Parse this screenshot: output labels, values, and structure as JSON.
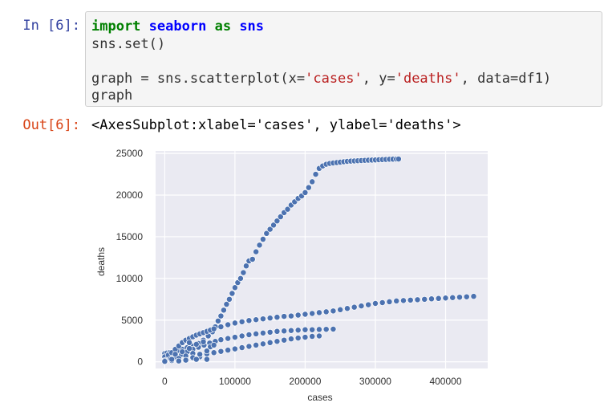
{
  "input_cell": {
    "prompt": "In [6]:",
    "lines": [
      [
        {
          "t": "import",
          "c": "kw"
        },
        {
          "t": " ",
          "c": ""
        },
        {
          "t": "seaborn",
          "c": "mod"
        },
        {
          "t": " ",
          "c": ""
        },
        {
          "t": "as",
          "c": "kw"
        },
        {
          "t": " ",
          "c": ""
        },
        {
          "t": "sns",
          "c": "mod"
        }
      ],
      [
        {
          "t": "sns.set()",
          "c": ""
        }
      ],
      [],
      [
        {
          "t": "graph = sns.scatterplot(x=",
          "c": ""
        },
        {
          "t": "'cases'",
          "c": "str"
        },
        {
          "t": ", y=",
          "c": ""
        },
        {
          "t": "'deaths'",
          "c": "str"
        },
        {
          "t": ", data=df1)",
          "c": ""
        }
      ],
      [
        {
          "t": "graph",
          "c": ""
        }
      ]
    ]
  },
  "output_cell": {
    "prompt": "Out[6]:",
    "text": "<AxesSubplot:xlabel='cases', ylabel='deaths'>"
  },
  "chart_data": {
    "type": "scatter",
    "xlabel": "cases",
    "ylabel": "deaths",
    "xlim": [
      -13000,
      460000
    ],
    "ylim": [
      -800,
      25300
    ],
    "xticks": [
      0,
      100000,
      200000,
      300000,
      400000
    ],
    "xtick_labels": [
      "0",
      "100000",
      "200000",
      "300000",
      "400000"
    ],
    "yticks": [
      0,
      5000,
      10000,
      15000,
      20000,
      25000
    ],
    "ytick_labels": [
      "0",
      "5000",
      "10000",
      "15000",
      "20000",
      "25000"
    ],
    "grid": true,
    "colors": {
      "background": "#eaeaf2",
      "grid": "#ffffff",
      "marker": "#4c72b0",
      "marker_edge": "#ffffff"
    },
    "series": [
      {
        "x": [
          0,
          3000,
          7000,
          12000,
          18000,
          25000,
          32000,
          40000,
          48000,
          55000,
          62000,
          68000,
          72000,
          76000,
          80000,
          84000,
          88000,
          92000,
          96000,
          100000,
          104000,
          108000,
          112000,
          116000,
          120000,
          125000,
          130000,
          135000,
          140000,
          145000,
          150000,
          155000,
          160000,
          165000,
          170000,
          175000,
          180000,
          185000,
          190000,
          195000,
          200000,
          205000,
          210000,
          215000,
          220000,
          225000,
          230000,
          235000,
          240000,
          245000,
          250000,
          255000,
          260000,
          265000,
          270000,
          275000,
          280000,
          285000,
          290000,
          295000,
          300000,
          305000,
          310000,
          315000,
          320000,
          325000,
          330000,
          333000
        ],
        "y": [
          1000,
          1050,
          1100,
          1200,
          1350,
          1500,
          1700,
          1900,
          2200,
          2600,
          3100,
          3600,
          4200,
          4900,
          5500,
          6200,
          6900,
          7500,
          8200,
          8900,
          9500,
          10000,
          10700,
          11500,
          12100,
          12300,
          13200,
          14000,
          14700,
          15400,
          15900,
          16400,
          16900,
          17400,
          17900,
          18300,
          18800,
          19200,
          19600,
          19900,
          20300,
          20900,
          21600,
          22500,
          23200,
          23500,
          23700,
          23800,
          23850,
          23900,
          23950,
          24000,
          24050,
          24080,
          24100,
          24120,
          24150,
          24170,
          24190,
          24200,
          24220,
          24240,
          24260,
          24280,
          24300,
          24310,
          24320,
          24330
        ]
      },
      {
        "x": [
          0,
          5000,
          10000,
          15000,
          20000,
          25000,
          30000,
          35000,
          40000,
          45000,
          50000,
          55000,
          60000,
          65000,
          70000,
          80000,
          90000,
          100000,
          110000,
          120000,
          130000,
          140000,
          150000,
          160000,
          170000,
          180000,
          190000,
          200000,
          210000,
          220000,
          230000,
          240000,
          250000,
          260000,
          270000,
          280000,
          290000,
          300000,
          310000,
          320000,
          330000,
          340000,
          350000,
          360000,
          370000,
          380000,
          390000,
          400000,
          410000,
          420000,
          430000,
          440000
        ],
        "y": [
          600,
          800,
          1100,
          1500,
          1900,
          2300,
          2600,
          2800,
          3000,
          3200,
          3350,
          3500,
          3650,
          3800,
          3950,
          4200,
          4450,
          4650,
          4800,
          4950,
          5050,
          5150,
          5250,
          5350,
          5450,
          5500,
          5600,
          5700,
          5800,
          5900,
          6000,
          6100,
          6250,
          6400,
          6550,
          6700,
          6850,
          7000,
          7100,
          7200,
          7300,
          7350,
          7400,
          7450,
          7500,
          7550,
          7600,
          7650,
          7700,
          7750,
          7800,
          7850
        ]
      },
      {
        "x": [
          0,
          8000,
          16000,
          24000,
          32000,
          40000,
          48000,
          56000,
          64000,
          72000,
          80000,
          90000,
          100000,
          110000,
          120000,
          130000,
          140000,
          150000,
          160000,
          170000,
          180000,
          190000,
          200000,
          210000,
          220000,
          230000,
          240000
        ],
        "y": [
          150,
          350,
          600,
          900,
          1200,
          1500,
          1750,
          2000,
          2250,
          2450,
          2650,
          2800,
          2950,
          3100,
          3250,
          3350,
          3450,
          3550,
          3650,
          3700,
          3750,
          3800,
          3850,
          3850,
          3880,
          3900,
          3920
        ]
      },
      {
        "x": [
          0,
          10000,
          20000,
          30000,
          40000,
          50000,
          60000,
          70000,
          80000,
          90000,
          100000,
          110000,
          120000,
          130000,
          140000,
          150000,
          160000,
          170000,
          180000,
          190000,
          200000,
          210000,
          220000
        ],
        "y": [
          50,
          150,
          300,
          480,
          650,
          800,
          950,
          1100,
          1250,
          1400,
          1550,
          1700,
          1850,
          2000,
          2150,
          2300,
          2450,
          2600,
          2750,
          2850,
          2950,
          3050,
          3100
        ]
      },
      {
        "x": [
          10000,
          15000,
          20000,
          25000,
          30000,
          35000,
          40000,
          45000,
          50000,
          55000,
          60000,
          65000,
          70000,
          20000,
          30000,
          40000,
          50000,
          60000,
          35000,
          45000
        ],
        "y": [
          300,
          900,
          400,
          1200,
          700,
          1600,
          1000,
          2100,
          600,
          2400,
          1300,
          1800,
          2000,
          100,
          200,
          500,
          900,
          300,
          2300,
          300
        ]
      }
    ]
  }
}
